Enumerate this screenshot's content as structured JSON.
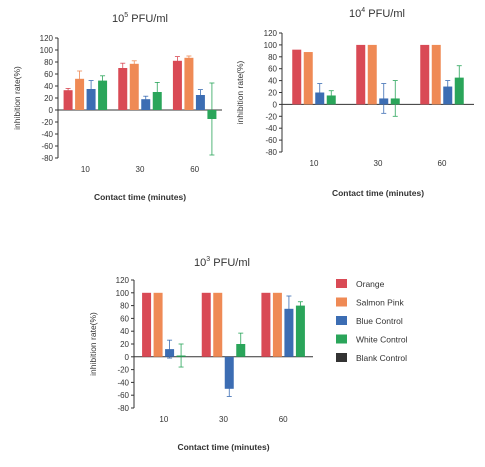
{
  "chart_data": [
    {
      "type": "bar",
      "title_base": "10",
      "title_exp": "5",
      "title_unit": " PFU/ml",
      "ylabel": "inhibition rate(%)",
      "xlabel": "Contact time (minutes)",
      "ylim": [
        -80,
        120
      ],
      "yticks": [
        120,
        100,
        80,
        60,
        40,
        20,
        0,
        -20,
        -40,
        -60,
        -80
      ],
      "categories": [
        "10",
        "30",
        "60"
      ],
      "series": [
        {
          "name": "Orange",
          "values": [
            33,
            70,
            82
          ],
          "errors": [
            3,
            8,
            7
          ]
        },
        {
          "name": "Salmon Pink",
          "values": [
            52,
            77,
            87
          ],
          "errors": [
            13,
            5,
            3
          ]
        },
        {
          "name": "Blue Control",
          "values": [
            35,
            18,
            25
          ],
          "errors": [
            14,
            5,
            9
          ]
        },
        {
          "name": "White Control",
          "values": [
            49,
            30,
            -15
          ],
          "errors": [
            8,
            16,
            60
          ]
        }
      ]
    },
    {
      "type": "bar",
      "title_base": "10",
      "title_exp": "4",
      "title_unit": " PFU/ml",
      "ylabel": "inhibition rate(%)",
      "xlabel": "Contact time (minutes)",
      "ylim": [
        -80,
        120
      ],
      "yticks": [
        120,
        100,
        80,
        60,
        40,
        20,
        0,
        -20,
        -40,
        -60,
        -80
      ],
      "categories": [
        "10",
        "30",
        "60"
      ],
      "series": [
        {
          "name": "Orange",
          "values": [
            92,
            100,
            100
          ],
          "errors": [
            0,
            0,
            0
          ]
        },
        {
          "name": "Salmon Pink",
          "values": [
            88,
            100,
            100
          ],
          "errors": [
            0,
            0,
            0
          ]
        },
        {
          "name": "Blue Control",
          "values": [
            20,
            10,
            30
          ],
          "errors": [
            15,
            25,
            10
          ]
        },
        {
          "name": "White Control",
          "values": [
            15,
            10,
            45
          ],
          "errors": [
            8,
            30,
            20
          ]
        }
      ]
    },
    {
      "type": "bar",
      "title_base": "10",
      "title_exp": "3",
      "title_unit": " PFU/ml",
      "ylabel": "inhibition rate(%)",
      "xlabel": "Contact time (minutes)",
      "ylim": [
        -80,
        120
      ],
      "yticks": [
        120,
        100,
        80,
        60,
        40,
        20,
        0,
        -20,
        -40,
        -60,
        -80
      ],
      "categories": [
        "10",
        "30",
        "60"
      ],
      "series": [
        {
          "name": "Orange",
          "values": [
            100,
            100,
            100
          ],
          "errors": [
            0,
            0,
            0
          ]
        },
        {
          "name": "Salmon Pink",
          "values": [
            100,
            100,
            100
          ],
          "errors": [
            0,
            0,
            0
          ]
        },
        {
          "name": "Blue Control",
          "values": [
            12,
            -50,
            75
          ],
          "errors": [
            14,
            12,
            20
          ]
        },
        {
          "name": "White Control",
          "values": [
            2,
            20,
            80
          ],
          "errors": [
            18,
            17,
            6
          ]
        }
      ]
    }
  ],
  "legend": [
    {
      "name": "Orange",
      "color": "#d94a55"
    },
    {
      "name": "Salmon Pink",
      "color": "#ef8a55"
    },
    {
      "name": "Blue Control",
      "color": "#3c6db3"
    },
    {
      "name": "White Control",
      "color": "#2aa55a"
    },
    {
      "name": "Blank Control",
      "color": "#333333"
    }
  ]
}
